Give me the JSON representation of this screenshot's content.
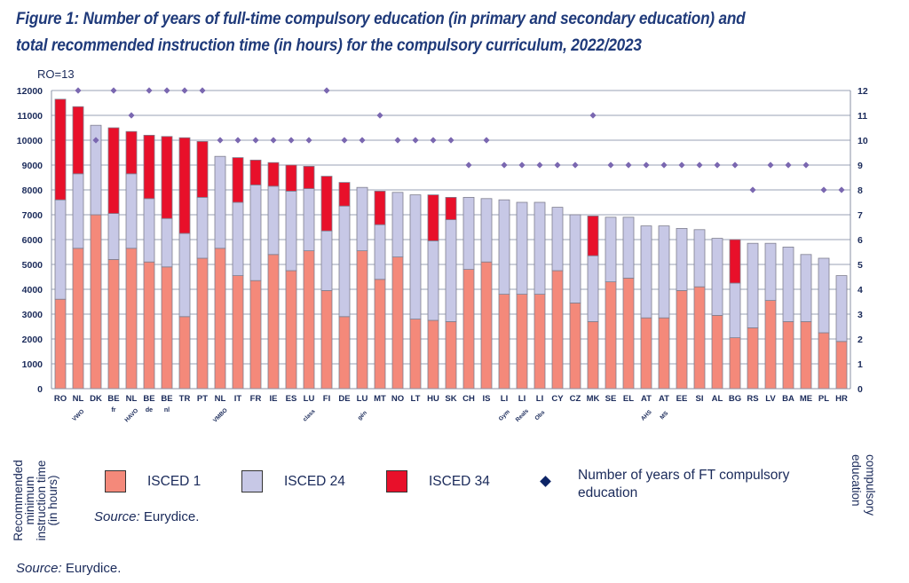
{
  "title_line1": "Figure 1: Number of years of full-time compulsory education (in primary and secondary education) and",
  "title_line2": "total recommended instruction time (in hours) for the compulsory curriculum, 2022/2023",
  "note": "RO=13",
  "legend": {
    "axis_left_label": "Recommended minimum instruction time (in hours)",
    "axis_right_label": "compulsory education",
    "items": [
      {
        "label": "ISCED 1",
        "color": "#f4897a"
      },
      {
        "label": "ISCED 24",
        "color": "#c7c8e6"
      },
      {
        "label": "ISCED 34",
        "color": "#e8102a"
      },
      {
        "label": "Number of years of FT compulsory education",
        "color": "#0d2466",
        "icon": "diamond-icon"
      }
    ]
  },
  "source_inner_prefix": "Source:",
  "source_inner_text": " Eurydice.",
  "source_prefix": "Source:",
  "source_text": " Eurydice.",
  "chart_data": {
    "type": "bar",
    "stacked": true,
    "title": "Number of years of full-time compulsory education (in primary and secondary education) and total recommended instruction time (in hours) for the compulsory curriculum, 2022/2023",
    "ylabel": "Recommended minimum instruction time (in hours)",
    "y2label": "Number of years of FT compulsory education",
    "ylim": [
      0,
      12000
    ],
    "y2lim": [
      0,
      12
    ],
    "yticks": [
      "0",
      "1000",
      "2000",
      "3000",
      "4000",
      "5000",
      "6000",
      "7000",
      "8000",
      "9000",
      "10000",
      "11000",
      "12000"
    ],
    "y2ticks": [
      "0",
      "1",
      "2",
      "3",
      "4",
      "5",
      "6",
      "7",
      "8",
      "9",
      "10",
      "11",
      "12"
    ],
    "grid": true,
    "legend_position": "bottom",
    "annotation": "RO=13",
    "categories": [
      "RO",
      "NL",
      "DK",
      "BE",
      "NL",
      "BE",
      "BE",
      "TR",
      "PT",
      "NL",
      "IT",
      "FR",
      "IE",
      "ES",
      "LU",
      "FI",
      "DE",
      "LU",
      "MT",
      "NO",
      "LT",
      "HU",
      "SK",
      "CH",
      "IS",
      "LI",
      "LI",
      "LI",
      "CY",
      "CZ",
      "MK",
      "SE",
      "EL",
      "AT",
      "AT",
      "EE",
      "SI",
      "AL",
      "BG",
      "RS",
      "LV",
      "BA",
      "ME",
      "PL",
      "HR"
    ],
    "sublabels": [
      "",
      "VWO",
      "",
      "fr",
      "HAVO",
      "de",
      "nl",
      "",
      "",
      "VMBO",
      "",
      "",
      "",
      "",
      "class",
      "",
      "",
      "gén",
      "",
      "",
      "",
      "",
      "",
      "",
      "",
      "Gym",
      "Reals",
      "Obs",
      "",
      "",
      "",
      "",
      "",
      "AHS",
      "MS",
      "",
      "",
      "",
      "",
      "",
      "",
      "",
      "",
      "",
      ""
    ],
    "series": [
      {
        "name": "ISCED 1",
        "color": "#f4897a",
        "values": [
          3600,
          5650,
          7000,
          5200,
          5650,
          5100,
          4900,
          2900,
          5250,
          5650,
          4550,
          4350,
          5400,
          4750,
          5550,
          3950,
          2900,
          5550,
          4400,
          5300,
          2800,
          2750,
          2700,
          4800,
          5100,
          3800,
          3800,
          3800,
          4750,
          3450,
          2700,
          4300,
          4450,
          2850,
          2850,
          3950,
          4100,
          2950,
          2050,
          2450,
          3550,
          2700,
          2700,
          2250,
          1900
        ]
      },
      {
        "name": "ISCED 24",
        "color": "#c7c8e6",
        "values": [
          4000,
          3000,
          3600,
          1850,
          3000,
          2550,
          1950,
          3350,
          2450,
          3700,
          2950,
          3850,
          2750,
          3200,
          2500,
          2400,
          4450,
          2550,
          2200,
          2600,
          5000,
          3200,
          4100,
          2900,
          2550,
          3800,
          3700,
          3700,
          2550,
          3550,
          2650,
          2600,
          2450,
          3700,
          3700,
          2500,
          2300,
          3100,
          2200,
          3400,
          2300,
          3000,
          2700,
          3000,
          2650
        ]
      },
      {
        "name": "ISCED 34",
        "color": "#e8102a",
        "values": [
          4050,
          2700,
          0,
          3450,
          1700,
          2550,
          3300,
          3850,
          2250,
          0,
          1800,
          1000,
          950,
          1050,
          900,
          2200,
          950,
          0,
          1350,
          0,
          0,
          1850,
          900,
          0,
          0,
          0,
          0,
          0,
          0,
          0,
          1600,
          0,
          0,
          0,
          0,
          0,
          0,
          0,
          1750,
          0,
          0,
          0,
          0,
          0,
          0
        ]
      },
      {
        "name": "Number of years of FT compulsory education",
        "axis": "y2",
        "type": "scatter",
        "color": "#7a67b0",
        "values": [
          13,
          12,
          10,
          12,
          11,
          12,
          12,
          12,
          12,
          10,
          10,
          10,
          10,
          10,
          10,
          12,
          10,
          10,
          11,
          10,
          10,
          10,
          10,
          9,
          10,
          9,
          9,
          9,
          9,
          9,
          11,
          9,
          9,
          9,
          9,
          9,
          9,
          9,
          9,
          8,
          9,
          9,
          9,
          8,
          8
        ]
      }
    ]
  }
}
